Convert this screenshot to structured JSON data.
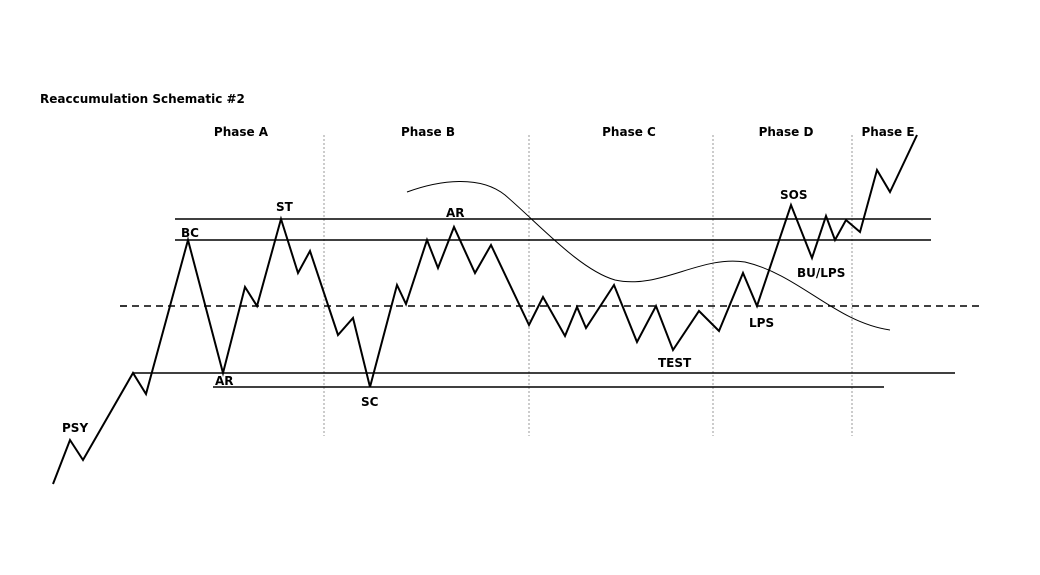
{
  "title": "Reaccumulation Schematic #2",
  "phases": [
    "Phase A",
    "Phase B",
    "Phase C",
    "Phase D",
    "Phase E"
  ],
  "labels": {
    "psy": "PSY",
    "bc": "BC",
    "ar_low": "AR",
    "st": "ST",
    "ar_high": "AR",
    "sc": "SC",
    "test": "TEST",
    "sos": "SOS",
    "bu_lps": "BU/LPS",
    "lps": "LPS"
  },
  "colors": {
    "ink": "#000000",
    "divider": "#9a9a9a"
  }
}
